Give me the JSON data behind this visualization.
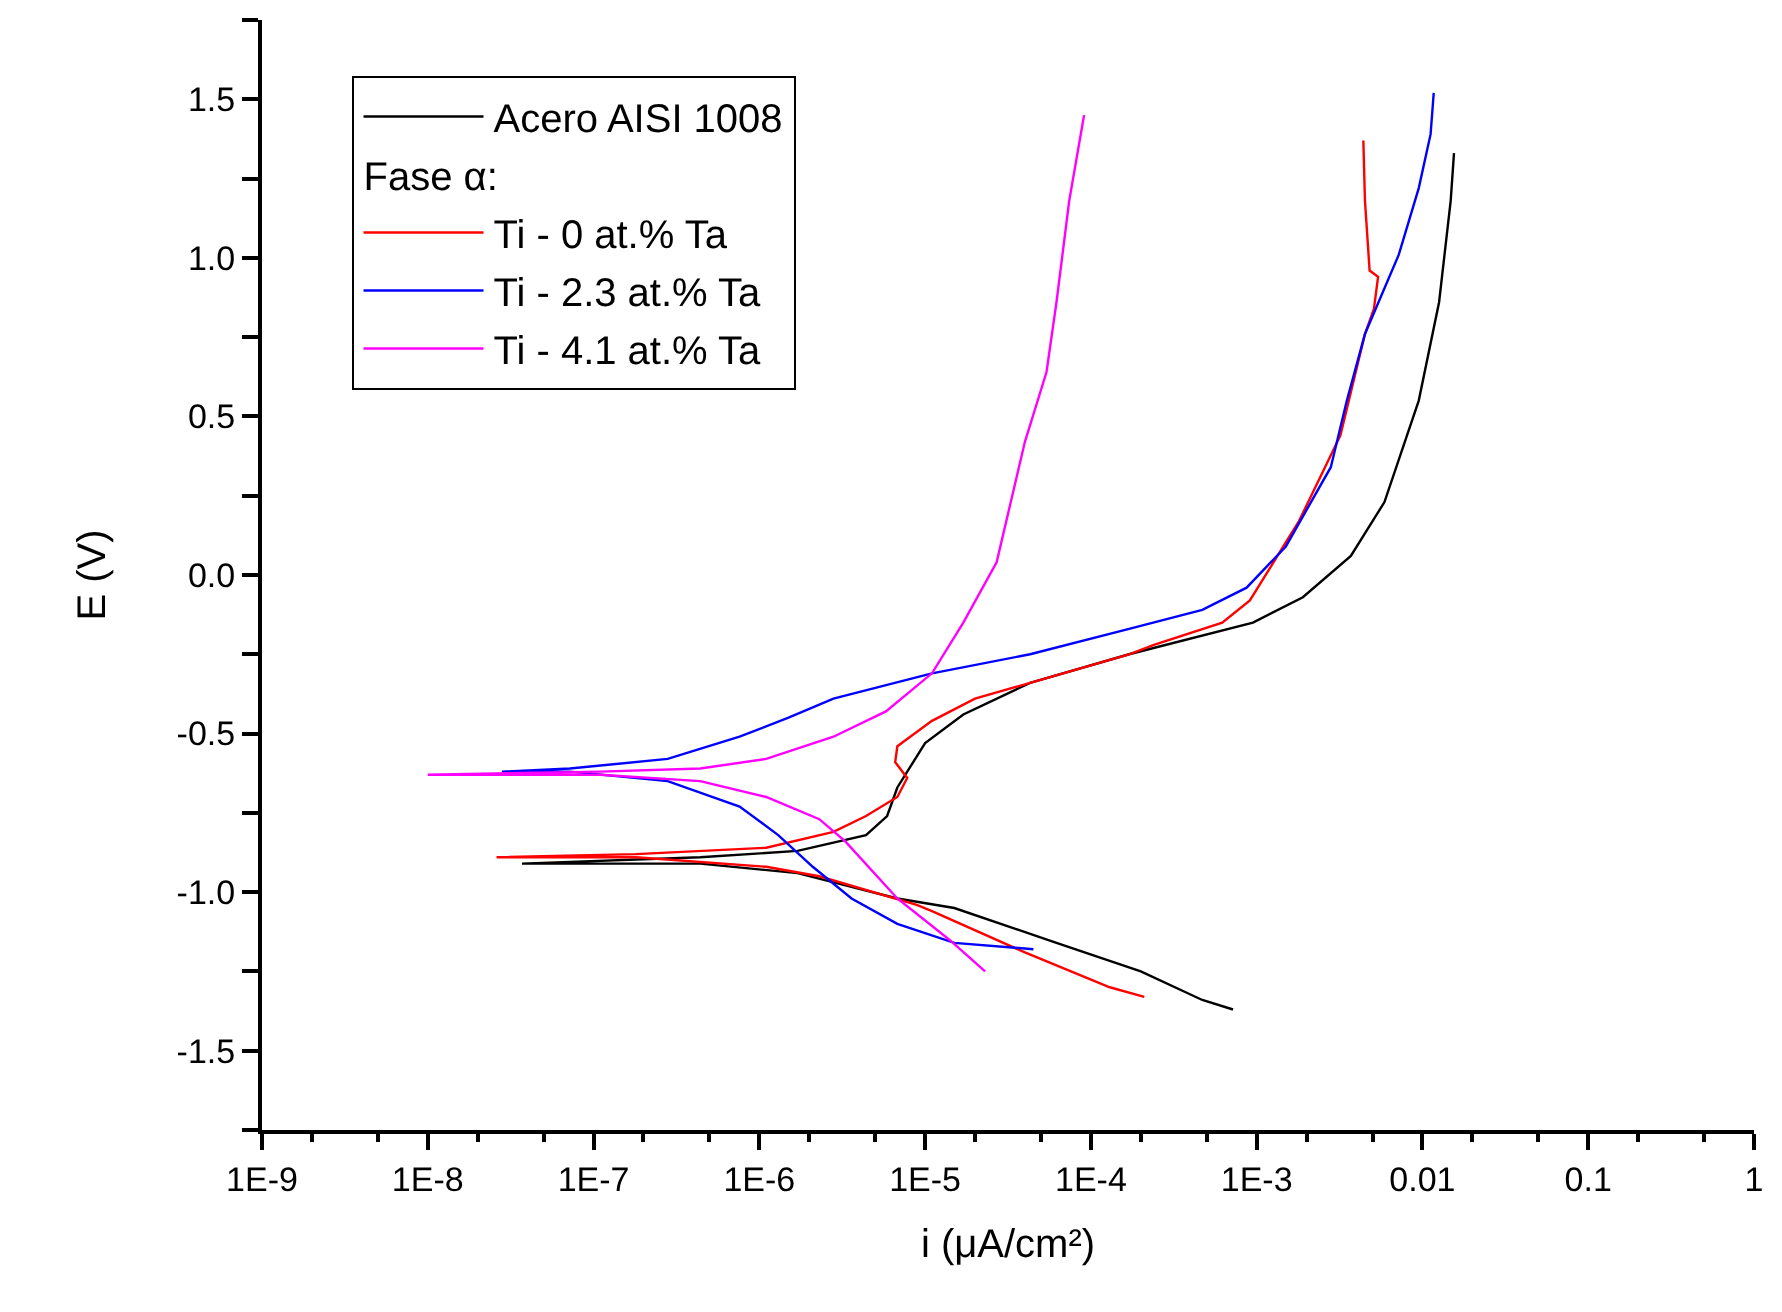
{
  "chart_data": {
    "type": "line",
    "xlabel": "i (μA/cm²)",
    "ylabel": "E (V)",
    "log": "x",
    "legend": "top left",
    "legend_title": "Fase α:",
    "xlim": [
      1e-09,
      1
    ],
    "ylim": [
      -1.75,
      1.75
    ],
    "xticks": [
      {
        "value": 1e-09,
        "label": "1E-9"
      },
      {
        "value": 1e-08,
        "label": "1E-8"
      },
      {
        "value": 1e-07,
        "label": "1E-7"
      },
      {
        "value": 1e-06,
        "label": "1E-6"
      },
      {
        "value": 1e-05,
        "label": "1E-5"
      },
      {
        "value": 0.0001,
        "label": "1E-4"
      },
      {
        "value": 0.001,
        "label": "1E-3"
      },
      0.01,
      0.1,
      1
    ],
    "yticks": [
      {
        "value": -1.75,
        "label": null
      },
      {
        "value": -1.5,
        "label": "-1.5"
      },
      {
        "value": -1.25,
        "label": null
      },
      {
        "value": -1,
        "label": "-1.0"
      },
      {
        "value": -0.75,
        "label": null
      },
      {
        "value": -0.5,
        "label": "-0.5"
      },
      {
        "value": -0.25,
        "label": null
      },
      {
        "value": 0,
        "label": "0.0"
      },
      {
        "value": 0.25,
        "label": null
      },
      {
        "value": 0.5,
        "label": "0.5"
      },
      {
        "value": 0.75,
        "label": null
      },
      {
        "value": 1,
        "label": "1.0"
      },
      {
        "value": 1.25,
        "label": null
      },
      {
        "value": 1.5,
        "label": "1.5"
      },
      {
        "value": 1.75,
        "label": null
      }
    ],
    "series": [
      {
        "name": "Acero AISI 1008",
        "color": "#000000",
        "x": [
          0.00072,
          0.00047,
          0.0002,
          6.2e-05,
          1.5e-05,
          6.8e-06,
          1.7e-06,
          4.4e-07,
          3.7e-08,
          4.4e-07,
          1.7e-06,
          4.4e-06,
          5.9e-06,
          6.8e-06,
          1e-05,
          1.7e-05,
          4.3e-05,
          0.00017,
          0.00095,
          0.0019,
          0.0037,
          0.0059,
          0.0095,
          0.0126,
          0.0148,
          0.0155
        ],
        "values": [
          -1.37,
          -1.34,
          -1.25,
          -1.16,
          -1.05,
          -1.02,
          -0.94,
          -0.91,
          -0.91,
          -0.89,
          -0.87,
          -0.82,
          -0.76,
          -0.67,
          -0.53,
          -0.44,
          -0.34,
          -0.25,
          -0.15,
          -0.07,
          0.06,
          0.23,
          0.55,
          0.86,
          1.18,
          1.33
        ]
      },
      {
        "name": "Ti - 0 at.% Ta",
        "color": "#ff0000",
        "x": [
          0.00021,
          0.00013,
          4e-05,
          1.1e-05,
          8.9e-06,
          2.3e-06,
          1.1e-06,
          1.8e-07,
          2.6e-08,
          1.8e-07,
          1.1e-06,
          2.8e-06,
          4.4e-06,
          6.8e-06,
          7.8e-06,
          6.6e-06,
          6.8e-06,
          1.1e-05,
          2e-05,
          4.3e-05,
          0.00017,
          0.00024,
          0.00062,
          0.00091,
          0.0018,
          0.0032,
          0.0045,
          0.0051,
          0.0054,
          0.0048,
          0.0045,
          0.0044
        ],
        "values": [
          -1.33,
          -1.3,
          -1.19,
          -1.06,
          -1.04,
          -0.95,
          -0.92,
          -0.89,
          -0.89,
          -0.88,
          -0.86,
          -0.81,
          -0.76,
          -0.7,
          -0.64,
          -0.59,
          -0.54,
          -0.46,
          -0.39,
          -0.34,
          -0.25,
          -0.22,
          -0.15,
          -0.08,
          0.17,
          0.44,
          0.76,
          0.84,
          0.94,
          0.96,
          1.18,
          1.37
        ]
      },
      {
        "name": "Ti - 2.3 at.% Ta",
        "color": "#0000ff",
        "x": [
          4.5e-05,
          1.5e-05,
          6.8e-06,
          3.6e-06,
          2.1e-06,
          1.3e-06,
          7.6e-07,
          2.8e-07,
          7.2e-08,
          2.8e-08,
          7.2e-08,
          2.8e-07,
          7.6e-07,
          1.5e-06,
          2.8e-06,
          1.1e-05,
          4.3e-05,
          0.00017,
          0.00047,
          0.00087,
          0.0015,
          0.0028,
          0.0035,
          0.0045,
          0.0072,
          0.0095,
          0.0112,
          0.0117
        ],
        "values": [
          -1.18,
          -1.16,
          -1.1,
          -1.02,
          -0.92,
          -0.82,
          -0.73,
          -0.65,
          -0.62,
          -0.62,
          -0.61,
          -0.58,
          -0.51,
          -0.45,
          -0.39,
          -0.31,
          -0.25,
          -0.17,
          -0.11,
          -0.04,
          0.09,
          0.34,
          0.55,
          0.76,
          1.01,
          1.22,
          1.39,
          1.52
        ]
      },
      {
        "name": "Ti - 4.1 at.% Ta",
        "color": "#ff00ff",
        "x": [
          2.3e-05,
          1.4e-05,
          6.8e-06,
          3.3e-06,
          2.3e-06,
          1.1e-06,
          4.4e-07,
          1.1e-07,
          1e-08,
          1.1e-07,
          4.4e-07,
          1.1e-06,
          2.8e-06,
          5.8e-06,
          1.1e-05,
          1.7e-05,
          2.7e-05,
          4e-05,
          5.4e-05,
          6.2e-05,
          7.4e-05,
          9.1e-05
        ],
        "values": [
          -1.25,
          -1.15,
          -1.02,
          -0.84,
          -0.77,
          -0.7,
          -0.65,
          -0.63,
          -0.63,
          -0.62,
          -0.61,
          -0.58,
          -0.51,
          -0.43,
          -0.31,
          -0.15,
          0.04,
          0.42,
          0.64,
          0.86,
          1.18,
          1.45
        ]
      }
    ]
  }
}
